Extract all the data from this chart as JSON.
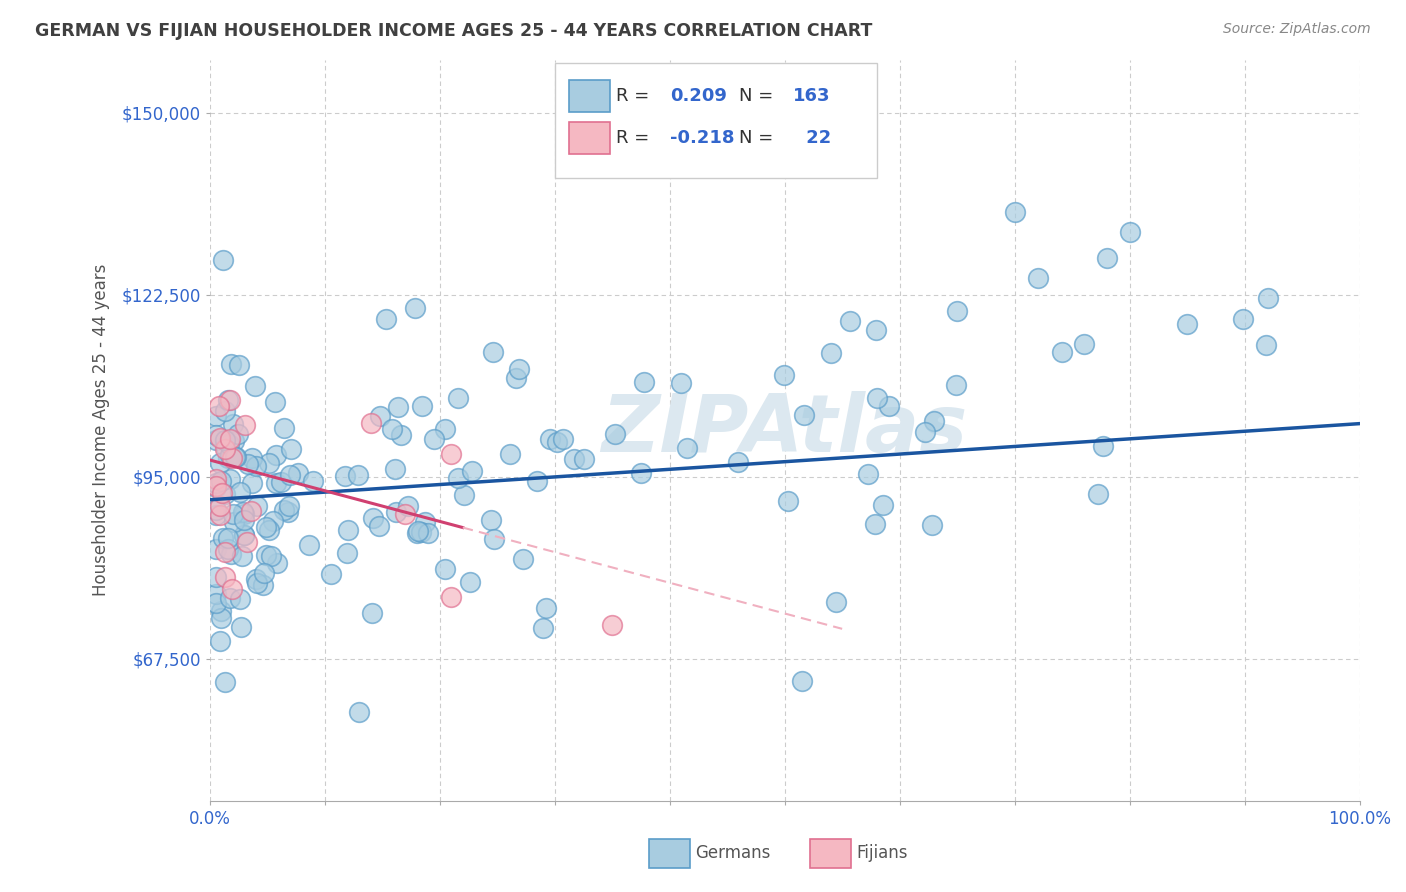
{
  "title": "GERMAN VS FIJIAN HOUSEHOLDER INCOME AGES 25 - 44 YEARS CORRELATION CHART",
  "source": "Source: ZipAtlas.com",
  "ylabel": "Householder Income Ages 25 - 44 years",
  "xlim": [
    0.0,
    1.0
  ],
  "ylim": [
    46000,
    158000
  ],
  "yticks": [
    67500,
    95000,
    122500,
    150000
  ],
  "ytick_labels": [
    "$67,500",
    "$95,000",
    "$122,500",
    "$150,000"
  ],
  "xticks": [
    0.0,
    0.1,
    0.2,
    0.3,
    0.4,
    0.5,
    0.6,
    0.7,
    0.8,
    0.9,
    1.0
  ],
  "german_color_fill": "#a8cce0",
  "german_color_edge": "#5b9dc9",
  "fijian_color_fill": "#f5b8c2",
  "fijian_color_edge": "#e07090",
  "german_line_color": "#1a55a0",
  "fijian_line_solid_color": "#d04070",
  "fijian_line_dash_color": "#f0b0c0",
  "background_color": "#ffffff",
  "grid_color": "#cccccc",
  "title_color": "#404040",
  "source_color": "#888888",
  "axis_label_color": "#555555",
  "tick_color": "#3366cc",
  "watermark_color": "#dce8f0",
  "legend_edge_color": "#cccccc",
  "legend_text_dark": "#333333",
  "legend_text_blue": "#3366cc"
}
